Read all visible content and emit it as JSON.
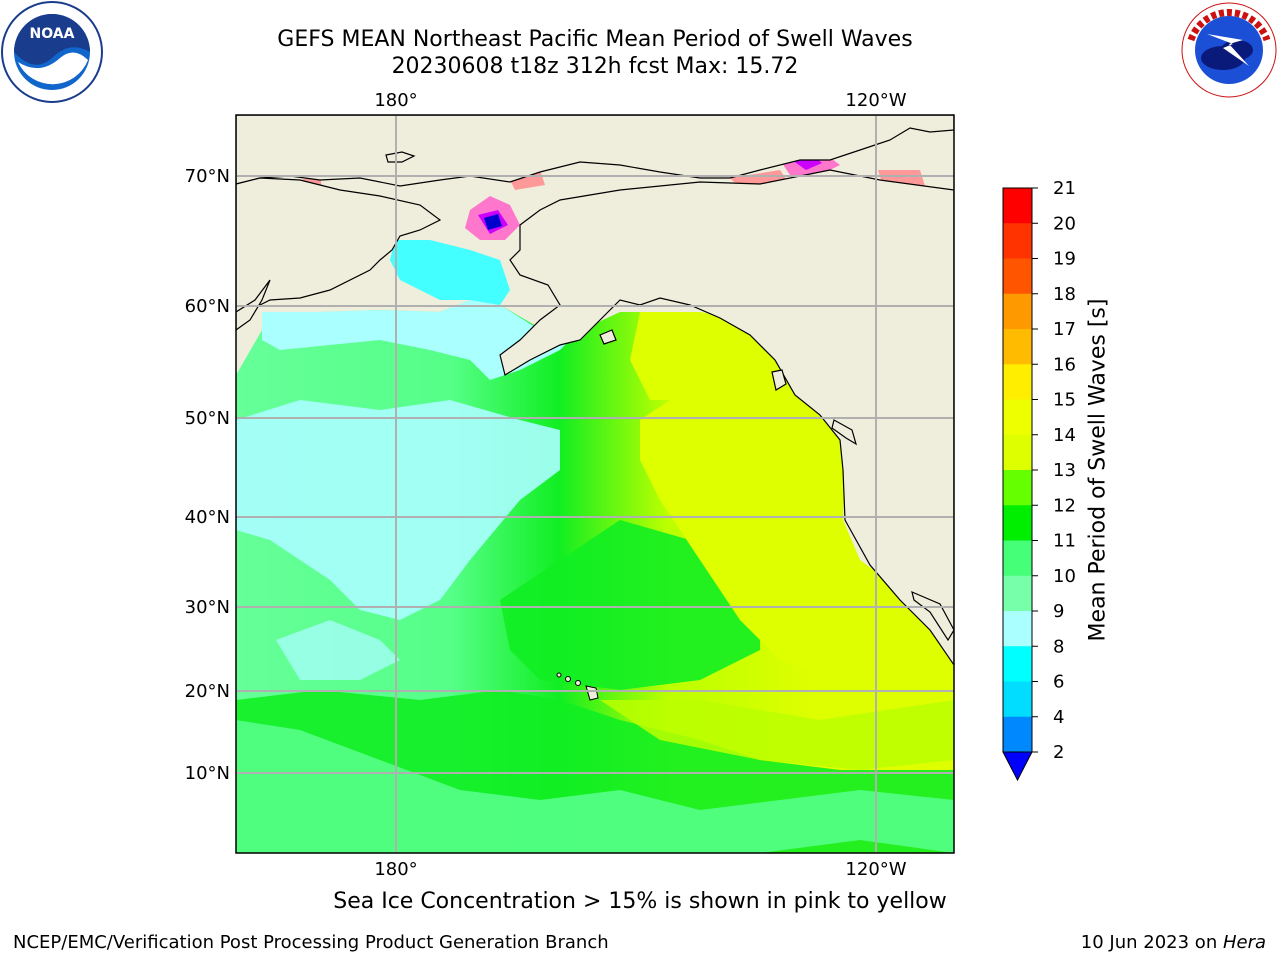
{
  "title_line1": "GEFS MEAN Northeast Pacific Mean Period of Swell Waves",
  "title_line2": "20230608 t18z 312h fcst   Max: 15.72",
  "logos": {
    "left": {
      "name": "noaa-logo",
      "text": "NOAA",
      "ring_text": "NATIONAL OCEANIC AND ATMOSPHERIC ADMINISTRATION · U.S. DEPARTMENT OF COMMERCE"
    },
    "right": {
      "name": "nws-logo",
      "ring_text": "NATIONAL WEATHER SERVICE"
    }
  },
  "map": {
    "lon_labels_top": [
      "180°",
      "120°W"
    ],
    "lon_labels_bottom": [
      "180°",
      "120°W"
    ],
    "lat_labels": [
      "70°N",
      "60°N",
      "50°N",
      "40°N",
      "30°N",
      "20°N",
      "10°N"
    ],
    "land_color": "#efeddc",
    "grid_color": "#b0b0b0"
  },
  "colorbar": {
    "label": "Mean Period of Swell Waves [s]",
    "ticks": [
      "21",
      "20",
      "19",
      "18",
      "17",
      "16",
      "15",
      "14",
      "13",
      "12",
      "11",
      "10",
      "9",
      "8",
      "6",
      "4",
      "2"
    ],
    "colors_top_to_bottom": [
      "#ff0000",
      "#ff3300",
      "#ff5500",
      "#ff7700",
      "#ff9900",
      "#ffbb00",
      "#ffee00",
      "#eeff00",
      "#ddff00",
      "#bbff00",
      "#66ff00",
      "#00ee00",
      "#44ff77",
      "#77ffaa",
      "#aaffff",
      "#44ffff",
      "#00ffff",
      "#00ddff",
      "#0088ff"
    ],
    "extend_color": "#0000ff"
  },
  "ice_note": "Sea Ice Concentration > 15% is shown in pink to yellow",
  "footer": {
    "left": "NCEP/EMC/Verification Post Processing Product Generation Branch",
    "right_date": "10 Jun 2023 on ",
    "right_host": "Hera"
  }
}
